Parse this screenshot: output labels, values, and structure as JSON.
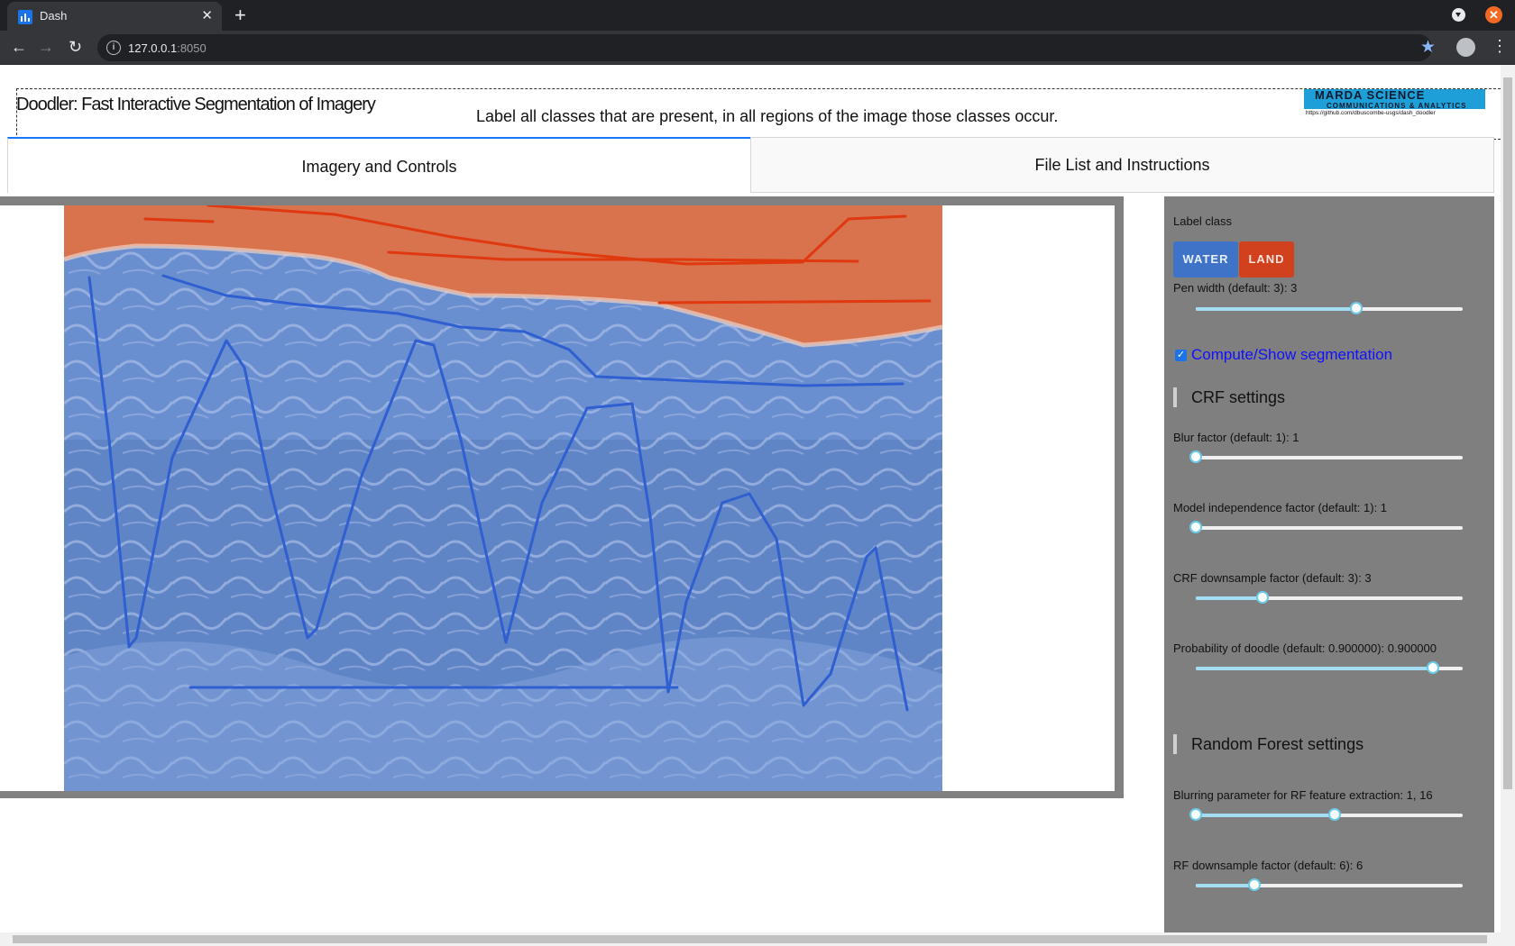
{
  "browser": {
    "tab_title": "Dash",
    "tab_close": "✕",
    "new_tab": "+",
    "url_host": "127.0.0.1",
    "url_port": ":8050",
    "win_close": "✕",
    "nav_back": "←",
    "nav_forward": "→",
    "nav_reload": "↻",
    "star": "★",
    "menu": "⋮"
  },
  "header": {
    "title": "Doodler: Fast Interactive Segmentation of Imagery",
    "instruction": "Label all classes that are present, in all regions of the image those classes occur.",
    "logo_top": "MARDA SCIENCE",
    "logo_sub": "COMMUNICATIONS & ANALYTICS",
    "logo_url": "https://github.com/dbuscombe-usgs/dash_doodler"
  },
  "tabs": [
    {
      "label": "Imagery and Controls",
      "active": true
    },
    {
      "label": "File List and Instructions",
      "active": false
    }
  ],
  "controls": {
    "label_class": "Label class",
    "classes": [
      {
        "label": "WATER",
        "color": "#3e73c8"
      },
      {
        "label": "LAND",
        "color": "#d2411d"
      }
    ],
    "pen_width": {
      "label": "Pen width (default: 3): 3",
      "fraction": 0.6
    },
    "compute_checkbox": {
      "label": "Compute/Show segmentation",
      "checked": true,
      "check": "✓"
    },
    "crf_header": "CRF settings",
    "crf_sliders": [
      {
        "label": "Blur factor (default: 1): 1",
        "fraction": 0.0
      },
      {
        "label": "Model independence factor (default: 1): 1",
        "fraction": 0.0
      },
      {
        "label": "CRF downsample factor (default: 3): 3",
        "fraction": 0.25
      },
      {
        "label": "Probability of doodle (default: 0.900000): 0.900000",
        "fraction": 0.89
      }
    ],
    "rf_header": "Random Forest settings",
    "rf_sliders": [
      {
        "label": "Blurring parameter for RF feature extraction: 1, 16",
        "range": [
          0.0,
          0.52
        ]
      },
      {
        "label": "RF downsample factor (default: 6): 6",
        "fraction": 0.22
      }
    ]
  },
  "colors": {
    "water_overlay": "#6a8fd0",
    "land_overlay": "#d9734e",
    "water_stroke": "#2f5fd0",
    "land_stroke": "#e0380f",
    "tab_accent": "#1975fa"
  }
}
